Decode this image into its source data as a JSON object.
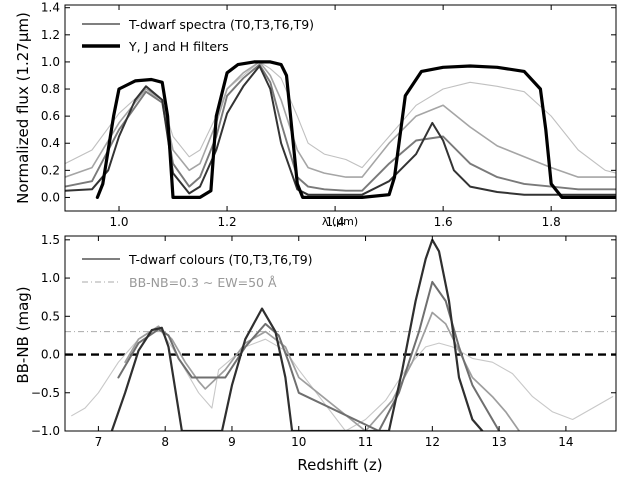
{
  "chart_data": [
    {
      "type": "line",
      "xlabel": "λ (μm)",
      "ylabel": "Normalized flux (1.27μm)",
      "xlim": [
        0.9,
        1.92
      ],
      "ylim": [
        -0.1,
        1.42
      ],
      "xticks": [
        "1.0",
        "1.2",
        "1.4",
        "1.6",
        "1.8"
      ],
      "xtick_values": [
        1.0,
        1.2,
        1.4,
        1.6,
        1.8
      ],
      "yticks": [
        "0.0",
        "0.2",
        "0.4",
        "0.6",
        "0.8",
        "1.0",
        "1.2",
        "1.4"
      ],
      "ytick_values": [
        0.0,
        0.2,
        0.4,
        0.6,
        0.8,
        1.0,
        1.2,
        1.4
      ],
      "legend_position": "top-left",
      "legend": [
        {
          "label": "T-dwarf spectra (T0,T3,T6,T9)",
          "color": "#555555",
          "width": 1.4
        },
        {
          "label": "Y, J and H filters",
          "color": "#000000",
          "width": 3.5
        }
      ],
      "series": [
        {
          "color": "#c0c0c0",
          "width": 1.1,
          "x": [
            0.9,
            0.95,
            1.0,
            1.05,
            1.08,
            1.1,
            1.13,
            1.15,
            1.18,
            1.2,
            1.23,
            1.26,
            1.28,
            1.3,
            1.33,
            1.35,
            1.38,
            1.42,
            1.45,
            1.5,
            1.55,
            1.6,
            1.65,
            1.7,
            1.75,
            1.8,
            1.85,
            1.9,
            1.92
          ],
          "y": [
            0.25,
            0.35,
            0.62,
            0.8,
            0.7,
            0.45,
            0.3,
            0.35,
            0.6,
            0.8,
            0.9,
            1.0,
            0.95,
            0.88,
            0.6,
            0.4,
            0.32,
            0.28,
            0.22,
            0.45,
            0.68,
            0.8,
            0.85,
            0.82,
            0.78,
            0.6,
            0.35,
            0.2,
            0.18
          ]
        },
        {
          "color": "#a5a5a5",
          "width": 1.6,
          "x": [
            0.9,
            0.95,
            1.0,
            1.05,
            1.08,
            1.1,
            1.13,
            1.15,
            1.18,
            1.2,
            1.23,
            1.26,
            1.28,
            1.3,
            1.33,
            1.35,
            1.38,
            1.42,
            1.45,
            1.5,
            1.55,
            1.6,
            1.65,
            1.7,
            1.75,
            1.8,
            1.85,
            1.9,
            1.92
          ],
          "y": [
            0.15,
            0.22,
            0.55,
            0.8,
            0.72,
            0.35,
            0.2,
            0.25,
            0.55,
            0.8,
            0.92,
            1.0,
            0.9,
            0.72,
            0.35,
            0.22,
            0.18,
            0.15,
            0.15,
            0.4,
            0.6,
            0.68,
            0.52,
            0.38,
            0.3,
            0.22,
            0.15,
            0.15,
            0.15
          ]
        },
        {
          "color": "#7a7a7a",
          "width": 1.9,
          "x": [
            0.9,
            0.95,
            1.0,
            1.05,
            1.08,
            1.1,
            1.13,
            1.15,
            1.18,
            1.2,
            1.23,
            1.26,
            1.28,
            1.3,
            1.33,
            1.35,
            1.38,
            1.42,
            1.45,
            1.5,
            1.55,
            1.6,
            1.65,
            1.7,
            1.75,
            1.8,
            1.85,
            1.9,
            1.92
          ],
          "y": [
            0.08,
            0.12,
            0.5,
            0.78,
            0.7,
            0.25,
            0.08,
            0.15,
            0.45,
            0.75,
            0.88,
            0.98,
            0.85,
            0.55,
            0.15,
            0.08,
            0.06,
            0.05,
            0.05,
            0.25,
            0.42,
            0.45,
            0.25,
            0.15,
            0.1,
            0.08,
            0.06,
            0.06,
            0.06
          ]
        },
        {
          "color": "#333333",
          "width": 2.0,
          "x": [
            0.9,
            0.95,
            0.98,
            1.0,
            1.03,
            1.05,
            1.08,
            1.1,
            1.13,
            1.15,
            1.18,
            1.2,
            1.23,
            1.26,
            1.28,
            1.3,
            1.33,
            1.35,
            1.38,
            1.42,
            1.45,
            1.5,
            1.55,
            1.58,
            1.6,
            1.62,
            1.65,
            1.7,
            1.75,
            1.8,
            1.85,
            1.9,
            1.92
          ],
          "y": [
            0.05,
            0.06,
            0.2,
            0.45,
            0.72,
            0.82,
            0.72,
            0.18,
            0.03,
            0.08,
            0.35,
            0.62,
            0.82,
            0.97,
            0.8,
            0.4,
            0.06,
            0.02,
            0.02,
            0.02,
            0.02,
            0.12,
            0.32,
            0.55,
            0.42,
            0.2,
            0.08,
            0.04,
            0.02,
            0.02,
            0.02,
            0.02,
            0.02
          ]
        },
        {
          "color": "#000000",
          "width": 3.2,
          "x": [
            0.96,
            0.97,
            0.99,
            1.0,
            1.03,
            1.06,
            1.08,
            1.09,
            1.1,
            1.15,
            1.17,
            1.18,
            1.2,
            1.22,
            1.25,
            1.28,
            1.3,
            1.31,
            1.33,
            1.34,
            1.35,
            1.45,
            1.5,
            1.51,
            1.53,
            1.56,
            1.6,
            1.65,
            1.7,
            1.75,
            1.78,
            1.79,
            1.8,
            1.82,
            1.9,
            1.92
          ],
          "y": [
            0.0,
            0.1,
            0.6,
            0.8,
            0.86,
            0.87,
            0.85,
            0.6,
            0.0,
            0.0,
            0.05,
            0.6,
            0.92,
            0.98,
            1.0,
            1.0,
            0.98,
            0.9,
            0.1,
            0.0,
            0.0,
            0.0,
            0.02,
            0.15,
            0.75,
            0.93,
            0.96,
            0.97,
            0.96,
            0.93,
            0.8,
            0.5,
            0.1,
            0.0,
            0.0,
            0.0
          ]
        }
      ]
    },
    {
      "type": "line",
      "xlabel": "Redshift (z)",
      "ylabel": "BB-NB (mag)",
      "xlim": [
        6.5,
        14.75
      ],
      "ylim": [
        -1.0,
        1.55
      ],
      "xticks": [
        "7",
        "8",
        "9",
        "10",
        "11",
        "12",
        "13",
        "14"
      ],
      "xtick_values": [
        7,
        8,
        9,
        10,
        11,
        12,
        13,
        14
      ],
      "yticks": [
        "−1.0",
        "−0.5",
        "0.0",
        "0.5",
        "1.0",
        "1.5"
      ],
      "ytick_values": [
        -1.0,
        -0.5,
        0.0,
        0.5,
        1.0,
        1.5
      ],
      "legend_position": "top-left",
      "legend": [
        {
          "label": "T-dwarf colours (T0,T3,T6,T9)",
          "color": "#555555",
          "width": 1.4,
          "dash": ""
        },
        {
          "label": "BB-NB=0.3 ∼ EW=50 Å",
          "color": "#aaaaaa",
          "width": 1.0,
          "dash": "6,3,1,3"
        }
      ],
      "hlines": [
        {
          "y": 0.3,
          "color": "#aaaaaa",
          "width": 1.0,
          "dash": "6,3,1,3"
        },
        {
          "y": 0.0,
          "color": "#000000",
          "width": 2.4,
          "dash": "8,5"
        }
      ],
      "series": [
        {
          "color": "#c8c8c8",
          "width": 1.1,
          "x": [
            6.6,
            6.8,
            7.0,
            7.3,
            7.6,
            7.9,
            8.1,
            8.3,
            8.5,
            8.7,
            8.8,
            9.0,
            9.2,
            9.5,
            9.8,
            10.0,
            10.7,
            11.0,
            11.3,
            11.6,
            11.9,
            12.1,
            12.3,
            12.6,
            12.9,
            13.2,
            13.5,
            13.8,
            14.1,
            14.4,
            14.7
          ],
          "y": [
            -0.8,
            -0.7,
            -0.5,
            -0.1,
            0.2,
            0.35,
            0.1,
            -0.2,
            -0.5,
            -0.7,
            -0.2,
            -0.05,
            0.1,
            0.2,
            0.05,
            -0.2,
            -1.0,
            -0.85,
            -0.6,
            -0.2,
            0.1,
            0.15,
            0.1,
            -0.05,
            -0.1,
            -0.25,
            -0.55,
            -0.75,
            -0.85,
            -0.7,
            -0.55
          ]
        },
        {
          "color": "#9e9e9e",
          "width": 1.7,
          "x": [
            7.4,
            7.6,
            7.9,
            8.1,
            8.3,
            8.5,
            8.6,
            8.9,
            9.2,
            9.5,
            9.8,
            10.0,
            11.0,
            11.4,
            11.7,
            12.0,
            12.2,
            12.4,
            12.6,
            12.9,
            13.1,
            13.3
          ],
          "y": [
            -0.1,
            0.2,
            0.37,
            0.2,
            -0.1,
            -0.35,
            -0.45,
            -0.2,
            0.15,
            0.3,
            0.1,
            -0.3,
            -1.0,
            -0.6,
            -0.1,
            0.55,
            0.4,
            0.05,
            -0.3,
            -0.55,
            -0.75,
            -1.0
          ]
        },
        {
          "color": "#6f6f6f",
          "width": 2.0,
          "x": [
            7.3,
            7.6,
            7.9,
            8.05,
            8.2,
            8.4,
            8.9,
            9.2,
            9.5,
            9.7,
            9.85,
            10.0,
            11.2,
            11.5,
            11.8,
            12.0,
            12.2,
            12.4,
            12.6,
            12.9,
            13.0
          ],
          "y": [
            -0.3,
            0.15,
            0.33,
            0.25,
            -0.05,
            -0.3,
            -0.3,
            0.1,
            0.4,
            0.25,
            -0.1,
            -0.5,
            -1.0,
            -0.5,
            0.3,
            0.95,
            0.7,
            0.1,
            -0.4,
            -0.85,
            -1.0
          ]
        },
        {
          "color": "#2f2f2f",
          "width": 2.2,
          "x": [
            7.2,
            7.4,
            7.6,
            7.8,
            7.95,
            8.05,
            8.15,
            8.25,
            8.85,
            9.0,
            9.2,
            9.45,
            9.65,
            9.8,
            9.9,
            11.35,
            11.55,
            11.75,
            11.9,
            12.0,
            12.1,
            12.25,
            12.4,
            12.6,
            12.75
          ],
          "y": [
            -1.0,
            -0.5,
            0.05,
            0.32,
            0.35,
            0.1,
            -0.45,
            -1.0,
            -1.0,
            -0.4,
            0.2,
            0.6,
            0.3,
            -0.3,
            -1.0,
            -1.0,
            -0.2,
            0.7,
            1.25,
            1.5,
            1.35,
            0.7,
            -0.3,
            -0.85,
            -1.0
          ]
        }
      ]
    }
  ]
}
